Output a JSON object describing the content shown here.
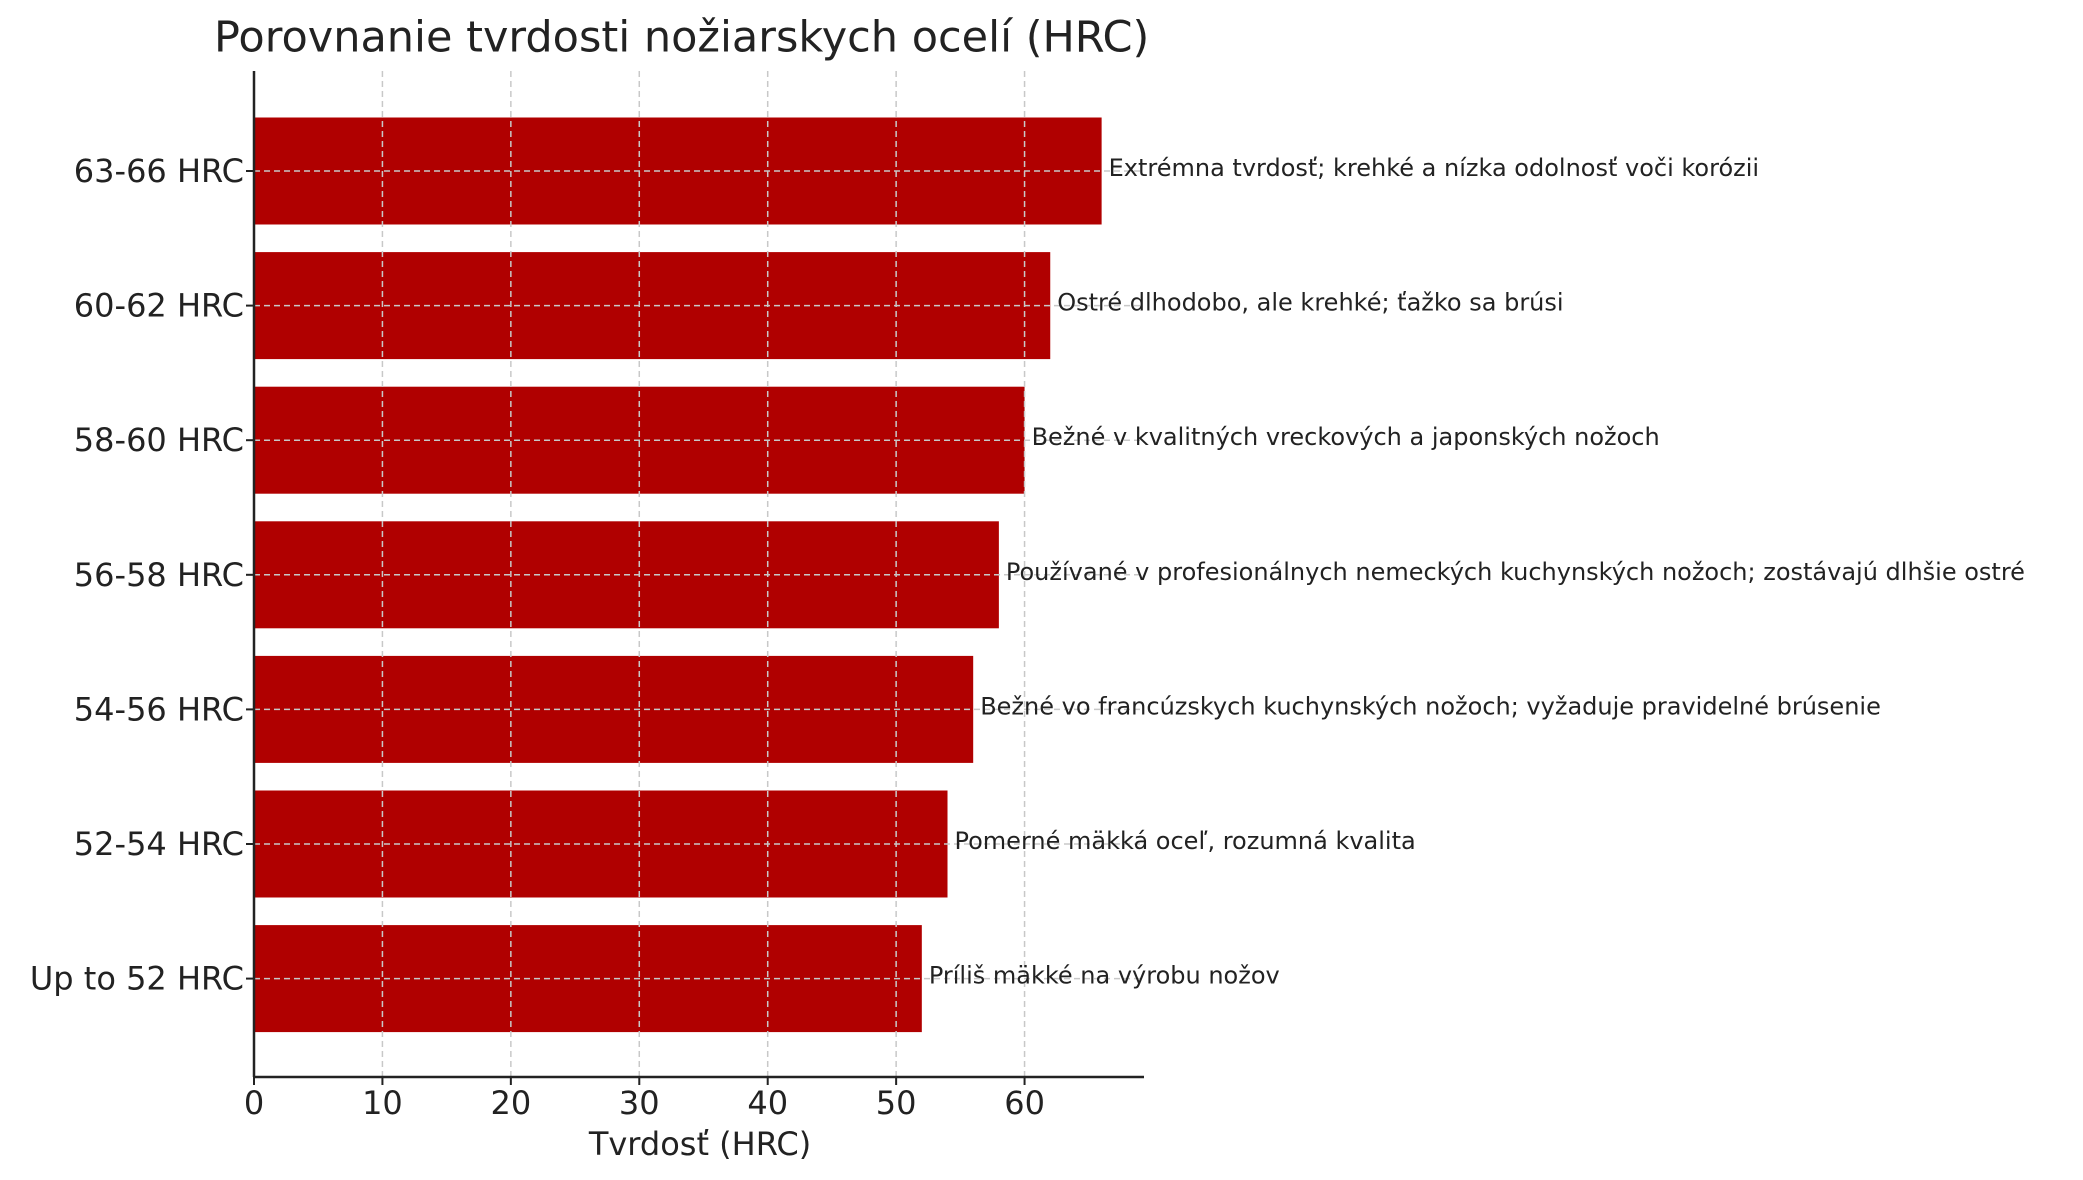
{
  "chart_data": {
    "type": "barh",
    "title": "Porovnanie tvrdosti nožiarskych ocelí (HRC)",
    "xlabel": "Tvrdosť (HRC)",
    "categories": [
      "63-66 HRC",
      "60-62 HRC",
      "58-60 HRC",
      "56-58 HRC",
      "54-56 HRC",
      "52-54 HRC",
      "Up to 52 HRC"
    ],
    "values": [
      66,
      62,
      60,
      58,
      56,
      54,
      52
    ],
    "annotations": [
      "Extrémna tvrdosť; krehké a nízka odolnosť voči korózii",
      "Ostré dlhodobo, ale krehké; ťažko sa brúsi",
      "Bežné v kvalitných vreckových a japonských nožoch",
      "Používané v profesionálnych nemeckých kuchynských nožoch; zostávajú dlhšie ostré",
      "Bežné vo francúzskych kuchynských nožoch; vyžaduje pravidelné brúsenie",
      "Pomerné mäkká oceľ, rozumná kvalita",
      "Príliš mäkké na výrobu nožov"
    ],
    "color": "#b00000",
    "xlim": [
      0,
      69.3
    ],
    "xticks": [
      0,
      10,
      20,
      30,
      40,
      50,
      60
    ],
    "grid": true
  }
}
